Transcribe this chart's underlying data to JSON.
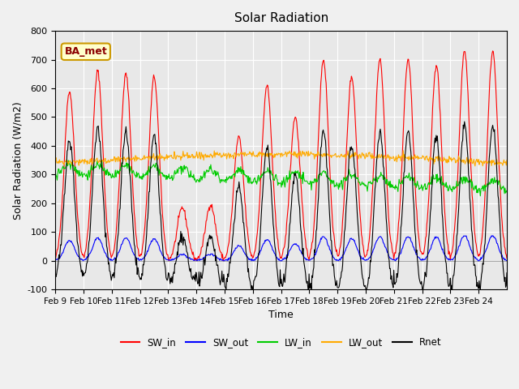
{
  "title": "Solar Radiation",
  "xlabel": "Time",
  "ylabel": "Solar Radiation (W/m2)",
  "ylim": [
    -100,
    800
  ],
  "yticks": [
    -100,
    0,
    100,
    200,
    300,
    400,
    500,
    600,
    700,
    800
  ],
  "x_labels": [
    "Feb 9",
    "Feb 10",
    "Feb 11",
    "Feb 12",
    "Feb 13",
    "Feb 14",
    "Feb 15",
    "Feb 16",
    "Feb 17",
    "Feb 18",
    "Feb 19",
    "Feb 20",
    "Feb 21",
    "Feb 22",
    "Feb 23",
    "Feb 24"
  ],
  "colors": {
    "SW_in": "#ff0000",
    "SW_out": "#0000ff",
    "LW_in": "#00cc00",
    "LW_out": "#ffaa00",
    "Rnet": "#000000"
  },
  "legend_label": "BA_met",
  "fig_facecolor": "#f0f0f0",
  "ax_facecolor": "#e8e8e8",
  "peak_heights": [
    590,
    660,
    650,
    640,
    185,
    195,
    430,
    610,
    500,
    700,
    640,
    700,
    700,
    680,
    730,
    730
  ]
}
